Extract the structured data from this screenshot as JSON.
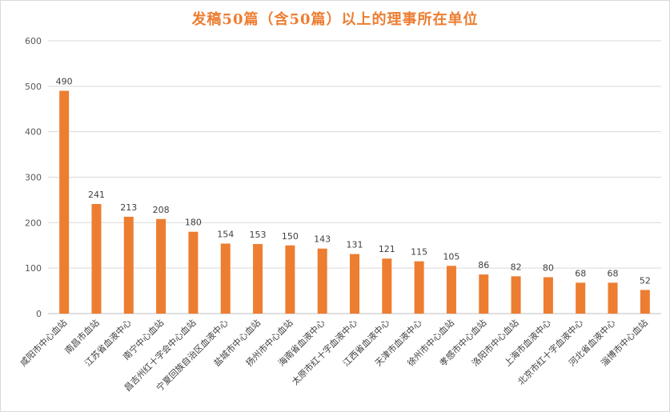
{
  "chart_data": {
    "type": "bar",
    "title": "发稿50篇（含50篇）以上的理事所在单位",
    "categories": [
      "咸阳市中心血站",
      "南昌市血站",
      "江苏省血液中心",
      "南宁中心血站",
      "昌吉州红十字会中心血站",
      "宁夏回族自治区血液中心",
      "盐城市中心血站",
      "扬州市中心血站",
      "海南省血液中心",
      "太原市红十字血液中心",
      "江西省血液中心",
      "天津市血液中心",
      "徐州市中心血站",
      "孝感市中心血站",
      "洛阳市中心血站",
      "上海市血液中心",
      "北京市红十字血液中心",
      "河北省血液中心",
      "淄博市中心血站"
    ],
    "values": [
      490,
      241,
      213,
      208,
      180,
      154,
      153,
      150,
      143,
      131,
      121,
      115,
      105,
      86,
      82,
      80,
      68,
      68,
      52
    ],
    "ylim": [
      0,
      600
    ],
    "yticks": [
      0,
      100,
      200,
      300,
      400,
      500,
      600
    ],
    "grid": true,
    "legend": "none",
    "xlabel": "",
    "ylabel": "",
    "colors": {
      "bar": "#ed7d31",
      "title": "#ed7d31",
      "grid": "#d9d9d9"
    }
  }
}
